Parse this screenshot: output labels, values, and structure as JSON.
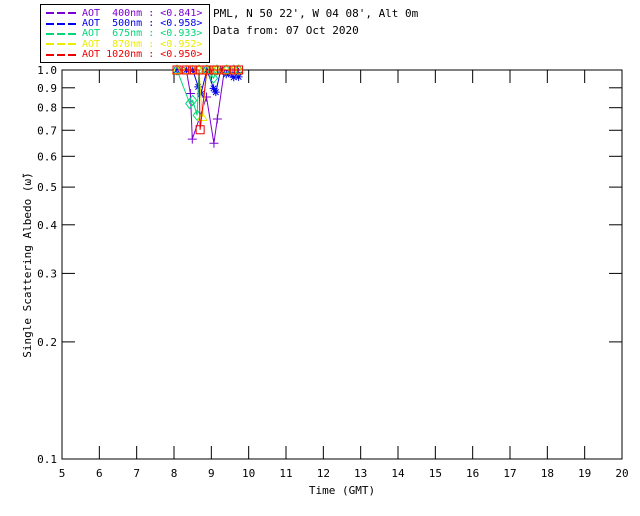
{
  "header": {
    "site_line": "PML, N 50 22', W 04 08', Alt 0m",
    "date_line": "Data from: 07 Oct 2020"
  },
  "chart_data": {
    "type": "line",
    "title": "",
    "xlabel": "Time (GMT)",
    "ylabel": "Single Scattering Albedo (ω̃)",
    "xlim": [
      5,
      20
    ],
    "ylim": [
      0.1,
      1.0
    ],
    "yscale": "log",
    "grid": false,
    "legend_position": "top-left-outside",
    "xticks": [
      5,
      6,
      7,
      8,
      9,
      10,
      11,
      12,
      13,
      14,
      15,
      16,
      17,
      18,
      19,
      20
    ],
    "ytick_labels": [
      "1.0",
      "0.9",
      "0.8",
      "0.7",
      "0.6",
      "0.5",
      "0.4",
      "0.3",
      "0.2",
      "0.1"
    ],
    "yticks": [
      1.0,
      0.9,
      0.8,
      0.7,
      0.6,
      0.5,
      0.4,
      0.3,
      0.2,
      0.1
    ],
    "series": [
      {
        "name": "AOT  400nm",
        "legend_value": "<0.841>",
        "color": "#7a00d2",
        "marker": "plus",
        "points": [
          [
            8.08,
            1.0
          ],
          [
            8.33,
            1.0
          ],
          [
            8.44,
            0.87
          ],
          [
            8.49,
            0.664
          ],
          [
            8.87,
            0.852
          ],
          [
            9.07,
            0.648
          ],
          [
            9.16,
            0.748
          ],
          [
            9.35,
            1.0
          ],
          [
            9.58,
            0.985
          ],
          [
            9.73,
            0.985
          ]
        ]
      },
      {
        "name": "AOT  500nm",
        "legend_value": "<0.958>",
        "color": "#0000ee",
        "marker": "asterisk",
        "points": [
          [
            8.08,
            1.0
          ],
          [
            8.33,
            1.0
          ],
          [
            8.5,
            1.0
          ],
          [
            8.65,
            0.905
          ],
          [
            8.72,
            0.868
          ],
          [
            8.88,
            1.0
          ],
          [
            9.06,
            0.897
          ],
          [
            9.12,
            0.877
          ],
          [
            9.25,
            1.0
          ],
          [
            9.4,
            0.975
          ],
          [
            9.6,
            0.958
          ],
          [
            9.73,
            0.96
          ]
        ]
      },
      {
        "name": "AOT  675nm",
        "legend_value": "<0.933>",
        "color": "#00d878",
        "marker": "diamond",
        "points": [
          [
            8.08,
            1.0
          ],
          [
            8.42,
            0.82
          ],
          [
            8.5,
            0.835
          ],
          [
            8.62,
            0.765
          ],
          [
            8.67,
            1.0
          ],
          [
            8.88,
            1.0
          ],
          [
            9.06,
            0.953
          ],
          [
            9.15,
            1.0
          ],
          [
            9.4,
            1.0
          ],
          [
            9.6,
            1.0
          ],
          [
            9.73,
            1.0
          ]
        ]
      },
      {
        "name": "AOT  870nm",
        "legend_value": "<0.952>",
        "color": "#ecec00",
        "marker": "triangle",
        "points": [
          [
            8.08,
            1.0
          ],
          [
            8.33,
            1.0
          ],
          [
            8.5,
            1.0
          ],
          [
            8.67,
            1.0
          ],
          [
            8.76,
            0.757
          ],
          [
            8.88,
            1.0
          ],
          [
            9.06,
            1.0
          ],
          [
            9.15,
            1.0
          ],
          [
            9.4,
            1.0
          ],
          [
            9.6,
            1.0
          ],
          [
            9.73,
            1.0
          ]
        ]
      },
      {
        "name": "AOT 1020nm",
        "legend_value": "<0.950>",
        "color": "#ee0000",
        "marker": "square",
        "points": [
          [
            8.08,
            1.0
          ],
          [
            8.33,
            1.0
          ],
          [
            8.5,
            1.0
          ],
          [
            8.67,
            1.0
          ],
          [
            8.7,
            0.702
          ],
          [
            8.88,
            1.0
          ],
          [
            9.06,
            1.0
          ],
          [
            9.15,
            1.0
          ],
          [
            9.4,
            1.0
          ],
          [
            9.6,
            1.0
          ],
          [
            9.73,
            1.0
          ]
        ]
      }
    ]
  }
}
